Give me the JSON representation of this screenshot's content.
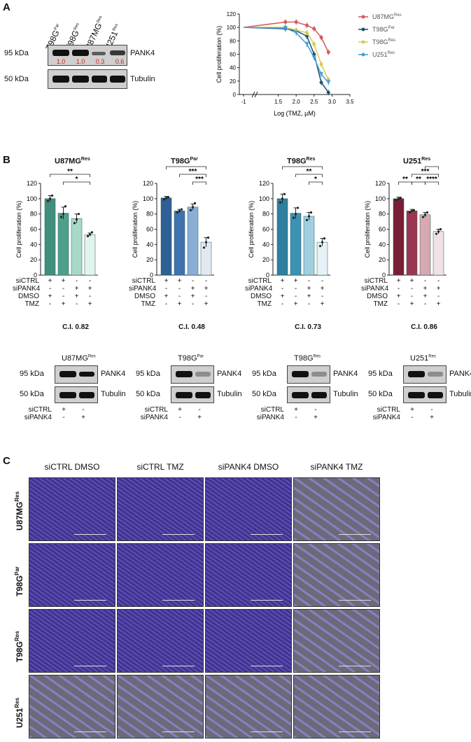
{
  "panels": {
    "A": "A",
    "B": "B",
    "C": "C"
  },
  "panelA": {
    "lanes": [
      {
        "base": "T98G",
        "sup": "Par"
      },
      {
        "base": "T98G",
        "sup": "Res"
      },
      {
        "base": "U87MG",
        "sup": "Res"
      },
      {
        "base": "U251",
        "sup": "Res"
      }
    ],
    "blots": [
      {
        "kda": "95 kDa",
        "protein": "PANK4",
        "quant": [
          "1.0",
          "1.0",
          "0.3",
          "0.6"
        ]
      },
      {
        "kda": "50 kDa",
        "protein": "Tubulin"
      }
    ],
    "quant_color": "#d21f1f"
  },
  "chart_data": [
    {
      "type": "line",
      "id": "dose-response",
      "xlabel": "Log (TMZ, µM)",
      "ylabel": "Cell proliferation (%)",
      "xticks": [
        "-1",
        "1.5",
        "2.0",
        "2.5",
        "3.0",
        "3.5"
      ],
      "yticks": [
        "0",
        "20",
        "40",
        "60",
        "80",
        "100",
        "120"
      ],
      "ylim": [
        0,
        120
      ],
      "xlim": [
        1.0,
        3.5
      ],
      "legend_position": "top-right",
      "series": [
        {
          "name": "U87MG",
          "sup": "Res",
          "color": "#d9565b",
          "marker": "circle",
          "x": [
            -1,
            1.7,
            2.0,
            2.3,
            2.5,
            2.7,
            2.9
          ],
          "y": [
            100,
            108,
            108,
            103,
            98,
            85,
            63
          ]
        },
        {
          "name": "T98G",
          "sup": "Par",
          "color": "#1b4f6e",
          "marker": "diamond",
          "x": [
            -1,
            1.7,
            2.0,
            2.3,
            2.5,
            2.7,
            2.9
          ],
          "y": [
            100,
            98,
            95,
            87,
            60,
            18,
            3
          ]
        },
        {
          "name": "T98G",
          "sup": "Res",
          "color": "#d6cb5a",
          "marker": "circle",
          "x": [
            -1,
            1.7,
            2.0,
            2.3,
            2.5,
            2.7,
            2.9
          ],
          "y": [
            100,
            100,
            96,
            92,
            75,
            45,
            22
          ]
        },
        {
          "name": "U251",
          "sup": "Res",
          "color": "#3f9ed6",
          "marker": "triangle",
          "x": [
            -1,
            1.7,
            2.0,
            2.3,
            2.5,
            2.7,
            2.9
          ],
          "y": [
            100,
            99,
            92,
            75,
            55,
            30,
            18
          ]
        }
      ]
    },
    {
      "type": "bar",
      "id": "bar-u87",
      "title": "U87MG",
      "title_sup": "Res",
      "ylabel": "Cell proliferation (%)",
      "ylim": [
        0,
        120
      ],
      "yticks": [
        "0",
        "20",
        "40",
        "60",
        "80",
        "100",
        "120"
      ],
      "values": [
        100,
        81,
        74,
        53
      ],
      "errors": [
        4,
        8,
        6,
        2
      ],
      "points": [
        [
          97,
          100,
          104
        ],
        [
          76,
          80,
          90
        ],
        [
          68,
          73,
          80
        ],
        [
          51,
          53,
          56
        ]
      ],
      "colors": [
        "#3f8f7c",
        "#4ea08c",
        "#a8d8c8",
        "#e4f3ec"
      ],
      "sig": [
        {
          "from": 0,
          "to": 3,
          "label": "**",
          "level": 1
        },
        {
          "from": 1,
          "to": 3,
          "label": "*",
          "level": 0
        }
      ],
      "ci": "C.I. 0.82"
    },
    {
      "type": "bar",
      "id": "bar-t98gpar",
      "title": "T98G",
      "title_sup": "Par",
      "ylabel": "Cell proliferation (%)",
      "ylim": [
        0,
        120
      ],
      "yticks": [
        "0",
        "20",
        "40",
        "60",
        "80",
        "100",
        "120"
      ],
      "values": [
        101,
        84,
        89,
        43
      ],
      "errors": [
        2,
        2,
        4,
        6
      ],
      "points": [
        [
          99,
          101,
          102
        ],
        [
          82,
          84,
          86
        ],
        [
          85,
          89,
          94
        ],
        [
          36,
          43,
          49
        ]
      ],
      "colors": [
        "#2e5f95",
        "#3f73ad",
        "#89aed6",
        "#e1e9f3"
      ],
      "sig": [
        {
          "from": 0,
          "to": 3,
          "label": "****",
          "level": 2
        },
        {
          "from": 1,
          "to": 3,
          "label": "***",
          "level": 1
        },
        {
          "from": 2,
          "to": 3,
          "label": "***",
          "level": 0
        }
      ],
      "ci": "C.I. 0.48"
    },
    {
      "type": "bar",
      "id": "bar-t98gres",
      "title": "T98G",
      "title_sup": "Res",
      "ylabel": "Cell proliferation (%)",
      "ylim": [
        0,
        120
      ],
      "yticks": [
        "0",
        "20",
        "40",
        "60",
        "80",
        "100",
        "120"
      ],
      "values": [
        100,
        81,
        77,
        43
      ],
      "errors": [
        6,
        7,
        5,
        5
      ],
      "points": [
        [
          95,
          100,
          106
        ],
        [
          75,
          80,
          88
        ],
        [
          72,
          77,
          82
        ],
        [
          38,
          43,
          48
        ]
      ],
      "colors": [
        "#2e7fa0",
        "#3b92b3",
        "#9fcfe0",
        "#e6f2f7"
      ],
      "sig": [
        {
          "from": 0,
          "to": 3,
          "label": "****",
          "level": 2
        },
        {
          "from": 1,
          "to": 3,
          "label": "**",
          "level": 1
        },
        {
          "from": 2,
          "to": 3,
          "label": "*",
          "level": 0
        }
      ],
      "ci": "C.I. 0.73"
    },
    {
      "type": "bar",
      "id": "bar-u251",
      "title": "U251",
      "title_sup": "Res",
      "ylabel": "Cell proliferation (%)",
      "ylim": [
        0,
        120
      ],
      "yticks": [
        "0",
        "20",
        "40",
        "60",
        "80",
        "100",
        "120"
      ],
      "values": [
        100,
        84,
        79,
        57
      ],
      "errors": [
        2,
        2,
        3,
        3
      ],
      "points": [
        [
          98,
          100,
          101
        ],
        [
          82,
          84,
          85
        ],
        [
          76,
          79,
          82
        ],
        [
          54,
          57,
          60
        ]
      ],
      "colors": [
        "#7a1e35",
        "#9c3550",
        "#d7a7b2",
        "#f1e0e4"
      ],
      "sig": [
        {
          "from": 0,
          "to": 1,
          "label": "**",
          "level": 0
        },
        {
          "from": 1,
          "to": 2,
          "label": "**",
          "level": 0
        },
        {
          "from": 2,
          "to": 3,
          "label": "****",
          "level": 0
        },
        {
          "from": 1,
          "to": 3,
          "label": "***",
          "level": 1
        },
        {
          "from": 2,
          "to": 3,
          "label": "***",
          "level": 2
        }
      ],
      "ci": "C.I. 0.86"
    }
  ],
  "treatments": {
    "rows": [
      "siCTRL",
      "siPANK4",
      "DMSO",
      "TMZ"
    ],
    "signs": [
      [
        "+",
        "+",
        "-",
        "-"
      ],
      [
        "-",
        "-",
        "+",
        "+"
      ],
      [
        "+",
        "-",
        "+",
        "-"
      ],
      [
        "-",
        "+",
        "-",
        "+"
      ]
    ]
  },
  "panelB_blots": [
    {
      "title": "U87MG",
      "sup": "Res"
    },
    {
      "title": "T98G",
      "sup": "Par"
    },
    {
      "title": "T98G",
      "sup": "Res"
    },
    {
      "title": "U251",
      "sup": "Res"
    }
  ],
  "blot_common": {
    "kda_top": "95 kDa",
    "kda_bot": "50 kDa",
    "prot_top": "PANK4",
    "prot_bot": "Tubulin",
    "rows": [
      "siCTRL",
      "siPANK4"
    ],
    "signs": [
      [
        "+",
        "-"
      ],
      [
        "-",
        "+"
      ]
    ]
  },
  "panelC": {
    "columns": [
      "siCTRL DMSO",
      "siCTRL TMZ",
      "siPANK4 DMSO",
      "siPANK4 TMZ"
    ],
    "rows": [
      {
        "base": "U87MG",
        "sup": "Res"
      },
      {
        "base": "T98G",
        "sup": "Par"
      },
      {
        "base": "T98G",
        "sup": "Res"
      },
      {
        "base": "U251",
        "sup": "Res"
      }
    ],
    "image_color": "#4b3f9a"
  }
}
